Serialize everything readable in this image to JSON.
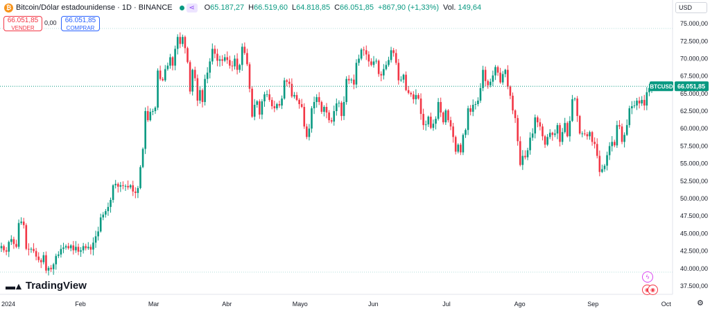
{
  "header": {
    "title": "Bitcoin/Dólar estadounidense · 1D · BINANCE",
    "ohlc": [
      {
        "k": "O",
        "v": "65.187,27"
      },
      {
        "k": "H",
        "v": "66.519,60"
      },
      {
        "k": "L",
        "v": "64.818,85"
      },
      {
        "k": "C",
        "v": "66.051,85"
      }
    ],
    "change": "+867,90 (+1,33%)",
    "volume_label": "Vol.",
    "volume": "149,64",
    "status_color": "#089981"
  },
  "trade": {
    "sell_price": "66.051,85",
    "sell_label": "VENDER",
    "spread": "0,00",
    "buy_price": "66.051,85",
    "buy_label": "COMPRAR"
  },
  "currency": "USD",
  "logo_text": "TradingView",
  "icons": [
    "bitcoin-icon",
    "eye-icon",
    "share-icon",
    "bolt-icon",
    "flag-icon",
    "gear-icon"
  ],
  "colors": {
    "up": "#089981",
    "down": "#f23645",
    "price_line": "#089981",
    "text": "#131722"
  },
  "chart_data": {
    "type": "candlestick",
    "title": "",
    "symbol_label": "BTCUSD",
    "last_price": 66051.85,
    "last_price_label": "66.051,85",
    "ylim": [
      37000,
      76200
    ],
    "y_ticks": [
      37500,
      40000,
      42500,
      45000,
      47500,
      50000,
      52500,
      55000,
      57500,
      60000,
      62500,
      65000,
      67500,
      70000,
      72500,
      75000
    ],
    "y_tick_labels": [
      "37.500,00",
      "40.000,00",
      "42.500,00",
      "45.000,00",
      "47.500,00",
      "50.000,00",
      "52.500,00",
      "55.000,00",
      "57.500,00",
      "60.000,00",
      "62.500,00",
      "65.000,00",
      "67.500,00",
      "70.000,00",
      "72.500,00",
      "75.000,00"
    ],
    "x_labels": [
      "2024",
      "Feb",
      "Mar",
      "Abr",
      "Mayo",
      "Jun",
      "Jul",
      "Ago",
      "Sep",
      "Oct"
    ],
    "grid": false,
    "closes": [
      43200,
      42600,
      42400,
      43800,
      44200,
      43500,
      43100,
      46500,
      46700,
      46200,
      42800,
      42700,
      42800,
      42500,
      41700,
      41200,
      40900,
      41900,
      39700,
      40100,
      39900,
      40600,
      41800,
      42000,
      42800,
      43000,
      43200,
      42900,
      43300,
      42600,
      43100,
      42400,
      42600,
      43200,
      42900,
      43100,
      42700,
      43700,
      44600,
      45300,
      47300,
      47700,
      48200,
      48800,
      49800,
      51900,
      52100,
      51700,
      51900,
      51800,
      51800,
      51600,
      51900,
      51000,
      50800,
      51500,
      54500,
      57100,
      62500,
      61200,
      62400,
      62500,
      63000,
      68300,
      67100,
      66900,
      68500,
      69000,
      70200,
      69000,
      71400,
      73100,
      72100,
      73100,
      71500,
      69500,
      65300,
      68400,
      67200,
      64000,
      65500,
      63800,
      67100,
      68000,
      69600,
      71400,
      70700,
      69700,
      69900,
      69700,
      70200,
      69800,
      69000,
      68900,
      70000,
      68400,
      69100,
      71700,
      70800,
      69200,
      65700,
      61700,
      63400,
      63900,
      62000,
      63900,
      64900,
      64900,
      64100,
      63200,
      62900,
      63500,
      63300,
      64300,
      66900,
      66700,
      66400,
      64600,
      64800,
      64100,
      63500,
      63100,
      60300,
      58800,
      60000,
      62900,
      63800,
      64500,
      63800,
      62400,
      63100,
      62300,
      61200,
      61000,
      62500,
      63600,
      63700,
      61800,
      63800,
      67100,
      66900,
      67000,
      66300,
      69400,
      70000,
      71300,
      71200,
      70600,
      69600,
      69100,
      69600,
      69700,
      67800,
      67600,
      68500,
      69100,
      69800,
      71200,
      70800,
      69400,
      66900,
      67000,
      67700,
      65500,
      65100,
      64900,
      64200,
      64800,
      64300,
      62100,
      60500,
      60600,
      61700,
      60100,
      60700,
      61400,
      63800,
      62300,
      60900,
      62600,
      61200,
      60300,
      58800,
      56700,
      57700,
      56600,
      59100,
      59800,
      62900,
      62400,
      63400,
      63500,
      64000,
      65800,
      68400,
      66800,
      66200,
      66700,
      67600,
      68800,
      68000,
      66600,
      67800,
      68400,
      66000,
      64700,
      62600,
      61500,
      58200,
      54800,
      56100,
      55900,
      56900,
      58700,
      59300,
      61600,
      60900,
      60300,
      58900,
      57700,
      58800,
      59400,
      59100,
      59300,
      60500,
      58100,
      59500,
      60800,
      58900,
      61100,
      64200,
      64300,
      61800,
      59300,
      59300,
      59200,
      58900,
      59500,
      58100,
      57800,
      56100,
      53800,
      54200,
      54700,
      56200,
      57500,
      58100,
      57600,
      60500,
      60300,
      58100,
      59100,
      60500,
      62900,
      63200,
      63300,
      64000,
      63600,
      64100,
      63300,
      65200,
      65800,
      66050
    ]
  }
}
